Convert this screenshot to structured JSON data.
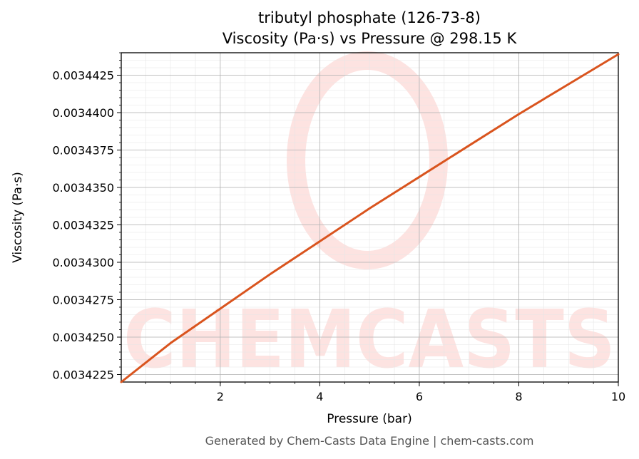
{
  "chart_data": {
    "type": "line",
    "title": "tributyl phosphate (126-73-8)",
    "subtitle": "Viscosity (Pa·s) vs Pressure @ 298.15 K",
    "xlabel": "Pressure (bar)",
    "ylabel": "Viscosity (Pa·s)",
    "xlim": [
      0.01,
      10
    ],
    "ylim": [
      0.003422,
      0.003444
    ],
    "xticks": [
      2,
      4,
      6,
      8,
      10
    ],
    "xtick_labels": [
      "2",
      "4",
      "6",
      "8",
      "10"
    ],
    "yticks": [
      0.0034225,
      0.003425,
      0.0034275,
      0.00343,
      0.0034325,
      0.003435,
      0.0034375,
      0.00344,
      0.0034425
    ],
    "ytick_labels": [
      "0.0034225",
      "0.0034250",
      "0.0034275",
      "0.0034300",
      "0.0034325",
      "0.0034350",
      "0.0034375",
      "0.0034400",
      "0.0034425"
    ],
    "grid": true,
    "series": [
      {
        "color": "#d9541e",
        "x": [
          0.01,
          1,
          2,
          3,
          4,
          5,
          6,
          7,
          8,
          9,
          10
        ],
        "y": [
          0.003422,
          0.0034246,
          0.0034269,
          0.0034292,
          0.0034314,
          0.0034336,
          0.0034357,
          0.0034378,
          0.0034399,
          0.0034419,
          0.0034439
        ]
      }
    ]
  },
  "watermark": "CHEMCASTS",
  "footer": "Generated by Chem-Casts Data Engine | chem-casts.com"
}
